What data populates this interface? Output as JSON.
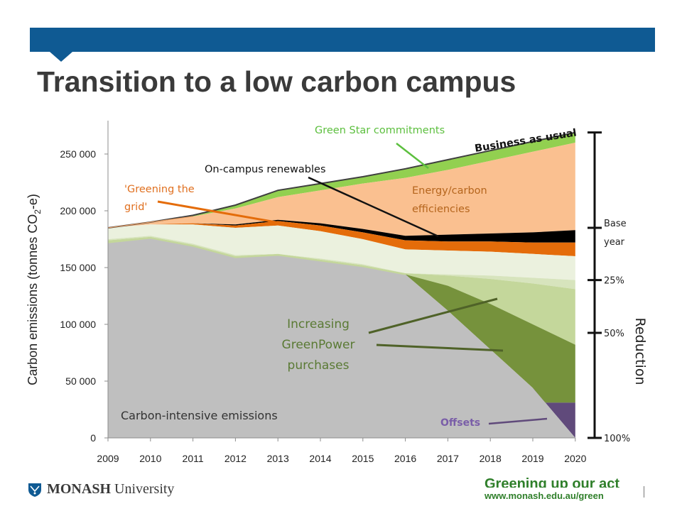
{
  "slide": {
    "title": "Transition to a low carbon campus"
  },
  "footer": {
    "logo_bold": "MONASH",
    "logo_regular": " University",
    "slogan": "Greening up our act",
    "url": "www.monash.edu.au/green"
  },
  "colors": {
    "header_bar": "#0f5a93",
    "carbon_intensive": "#bfbfbf",
    "greenpower": "#76923c",
    "greenpower_light": "#c4d79b",
    "pale_green": "#ebf1de",
    "greening_grid": "#e46c0a",
    "on_campus_renewables": "#000000",
    "energy_efficiency": "#fac090",
    "green_star": "#92d050",
    "offsets": "#604a7b"
  },
  "chart_data": {
    "type": "area",
    "title": "",
    "ylabel": "Carbon emissions (tonnes CO2-e)",
    "ylabel_parts": {
      "pre": "Carbon emissions (tonnes CO",
      "sub": "2",
      "post": "-e)"
    },
    "xlabel": "",
    "x": [
      2009,
      2010,
      2011,
      2012,
      2013,
      2014,
      2015,
      2016,
      2017,
      2018,
      2019,
      2020
    ],
    "xtick_labels": [
      "2009",
      "2010",
      "2011",
      "2012",
      "2013",
      "2014",
      "2015",
      "2016",
      "2017",
      "2018",
      "2019",
      "2020"
    ],
    "ylim": [
      0,
      280000
    ],
    "yticks": [
      0,
      50000,
      100000,
      150000,
      200000,
      250000
    ],
    "ytick_labels": [
      "0",
      "50 000",
      "100 000",
      "150 000",
      "200 000",
      "250 000"
    ],
    "grid": false,
    "boundaries": {
      "carbon_intensive_top": [
        [
          2009,
          172000
        ],
        [
          2010,
          176000
        ],
        [
          2011,
          169000
        ],
        [
          2012,
          159000
        ],
        [
          2013,
          161000
        ],
        [
          2014,
          156000
        ],
        [
          2015,
          151000
        ],
        [
          2016,
          144000
        ],
        [
          2017,
          112000
        ],
        [
          2018,
          78000
        ],
        [
          2019,
          44000
        ],
        [
          2020,
          0
        ]
      ],
      "offsets_top": [
        [
          2009,
          172000
        ],
        [
          2010,
          176000
        ],
        [
          2011,
          169000
        ],
        [
          2012,
          159000
        ],
        [
          2013,
          161000
        ],
        [
          2014,
          156000
        ],
        [
          2015,
          151000
        ],
        [
          2016,
          144000
        ],
        [
          2017,
          112000
        ],
        [
          2018,
          78000
        ],
        [
          2019,
          44000
        ],
        [
          2019.2,
          31000
        ],
        [
          2020,
          31000
        ]
      ],
      "greenpower_dark_top": [
        [
          2009,
          172000
        ],
        [
          2010,
          176000
        ],
        [
          2011,
          169000
        ],
        [
          2012,
          159000
        ],
        [
          2013,
          161000
        ],
        [
          2014,
          156000
        ],
        [
          2015,
          151000
        ],
        [
          2016,
          144000
        ],
        [
          2017,
          134000
        ],
        [
          2018,
          118000
        ],
        [
          2019,
          100000
        ],
        [
          2020,
          82000
        ]
      ],
      "greenpower_light_top": [
        [
          2009,
          174000
        ],
        [
          2010,
          177000
        ],
        [
          2011,
          170000
        ],
        [
          2012,
          160000
        ],
        [
          2013,
          162000
        ],
        [
          2014,
          157000
        ],
        [
          2015,
          152000
        ],
        [
          2016,
          145000
        ],
        [
          2017,
          143000
        ],
        [
          2018,
          140000
        ],
        [
          2019,
          136000
        ],
        [
          2020,
          131000
        ]
      ],
      "pale_green_top": [
        [
          2009,
          175000
        ],
        [
          2010,
          178000
        ],
        [
          2011,
          171000
        ],
        [
          2012,
          161000
        ],
        [
          2013,
          162000
        ],
        [
          2014,
          158000
        ],
        [
          2015,
          153000
        ],
        [
          2016,
          145000
        ],
        [
          2017,
          144000
        ],
        [
          2018,
          143000
        ],
        [
          2019,
          141000
        ],
        [
          2020,
          139000
        ]
      ],
      "greening_grid_bottom": [
        [
          2009,
          185000
        ],
        [
          2010,
          188000
        ],
        [
          2011,
          188000
        ],
        [
          2012,
          185000
        ],
        [
          2013,
          187000
        ],
        [
          2014,
          182000
        ],
        [
          2015,
          175000
        ],
        [
          2016,
          166000
        ],
        [
          2017,
          165000
        ],
        [
          2018,
          164000
        ],
        [
          2019,
          162000
        ],
        [
          2020,
          160000
        ]
      ],
      "greening_grid_top": [
        [
          2009,
          185000
        ],
        [
          2010,
          188000
        ],
        [
          2011,
          189000
        ],
        [
          2012,
          187000
        ],
        [
          2013,
          191000
        ],
        [
          2014,
          187000
        ],
        [
          2015,
          181000
        ],
        [
          2016,
          174000
        ],
        [
          2017,
          173000
        ],
        [
          2018,
          173000
        ],
        [
          2019,
          172000
        ],
        [
          2020,
          172000
        ]
      ],
      "renewables_top": [
        [
          2009,
          185000
        ],
        [
          2010,
          188000
        ],
        [
          2011,
          189000
        ],
        [
          2012,
          188000
        ],
        [
          2013,
          192000
        ],
        [
          2014,
          189000
        ],
        [
          2015,
          184000
        ],
        [
          2016,
          178000
        ],
        [
          2017,
          179000
        ],
        [
          2018,
          180000
        ],
        [
          2019,
          181000
        ],
        [
          2020,
          183000
        ]
      ],
      "efficiencies_top": [
        [
          2009,
          185000
        ],
        [
          2010,
          190000
        ],
        [
          2011,
          195000
        ],
        [
          2012,
          202000
        ],
        [
          2013,
          212000
        ],
        [
          2014,
          218000
        ],
        [
          2015,
          224000
        ],
        [
          2016,
          229000
        ],
        [
          2017,
          236000
        ],
        [
          2018,
          244000
        ],
        [
          2019,
          252000
        ],
        [
          2020,
          260000
        ]
      ],
      "business_as_usual": [
        [
          2009,
          185000
        ],
        [
          2010,
          190000
        ],
        [
          2011,
          196000
        ],
        [
          2012,
          205000
        ],
        [
          2013,
          218000
        ],
        [
          2014,
          224000
        ],
        [
          2015,
          230000
        ],
        [
          2016,
          237000
        ],
        [
          2017,
          245000
        ],
        [
          2018,
          253000
        ],
        [
          2019,
          261000
        ],
        [
          2020,
          269000
        ]
      ]
    },
    "annotations": {
      "green_star": "Green Star commitments",
      "business_as_usual": "Business as usual",
      "on_campus_renewables": "On-campus renewables",
      "greening_grid_line1": "'Greening the",
      "greening_grid_line2": "grid'",
      "energy_efficiency_line1": "Energy/carbon",
      "energy_efficiency_line2": "efficiencies",
      "greenpower_line1": "Increasing",
      "greenpower_line2": "GreenPower",
      "greenpower_line3": "purchases",
      "carbon_intensive": "Carbon-intensive emissions",
      "offsets": "Offsets"
    },
    "reduction_scale": {
      "title": "Reduction",
      "ticks": [
        {
          "label_line1": "Base",
          "label_line2": "year",
          "value": 185000
        },
        {
          "label_line1": "25%",
          "label_line2": "",
          "value": 139000
        },
        {
          "label_line1": "50%",
          "label_line2": "",
          "value": 92500
        },
        {
          "label_line1": "100%",
          "label_line2": "",
          "value": 0
        }
      ]
    }
  }
}
